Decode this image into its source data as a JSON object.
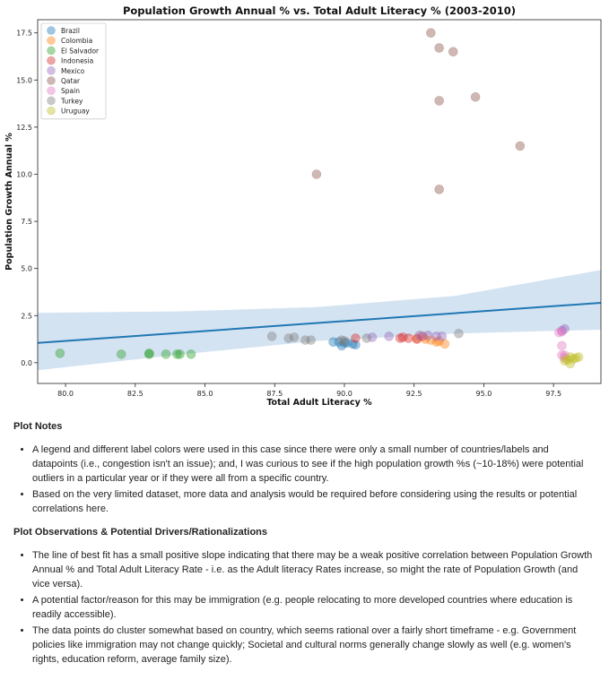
{
  "chart_data": {
    "type": "scatter",
    "title": "Population Growth Annual % vs. Total Adult Literacy % (2003-2010)",
    "xlabel": "Total Adult Literacy %",
    "ylabel": "Population Growth Annual %",
    "xlim": [
      79,
      99.2
    ],
    "ylim": [
      -1.1,
      18.2
    ],
    "xticks": [
      80.0,
      82.5,
      85.0,
      87.5,
      90.0,
      92.5,
      95.0,
      97.5
    ],
    "xtick_labels": [
      "80.0",
      "82.5",
      "85.0",
      "87.5",
      "90.0",
      "92.5",
      "95.0",
      "97.5"
    ],
    "yticks": [
      0.0,
      2.5,
      5.0,
      7.5,
      10.0,
      12.5,
      15.0,
      17.5
    ],
    "ytick_labels": [
      "0.0",
      "2.5",
      "5.0",
      "7.5",
      "10.0",
      "12.5",
      "15.0",
      "17.5"
    ],
    "legend_position": "top-left",
    "series": [
      {
        "name": "Brazil",
        "color": "#1f77b4",
        "points": [
          [
            89.8,
            1.1
          ],
          [
            90.0,
            1.05
          ],
          [
            90.3,
            1.0
          ],
          [
            89.6,
            1.1
          ],
          [
            90.4,
            0.95
          ],
          [
            89.9,
            0.9
          ],
          [
            90.1,
            1.05
          ]
        ]
      },
      {
        "name": "Colombia",
        "color": "#ff7f0e",
        "points": [
          [
            93.6,
            1.0
          ],
          [
            93.3,
            1.1
          ],
          [
            92.9,
            1.25
          ],
          [
            93.1,
            1.2
          ],
          [
            93.4,
            1.15
          ],
          [
            92.6,
            1.3
          ]
        ]
      },
      {
        "name": "El Salvador",
        "color": "#2ca02c",
        "points": [
          [
            79.8,
            0.5
          ],
          [
            82.0,
            0.45
          ],
          [
            83.0,
            0.45
          ],
          [
            83.0,
            0.5
          ],
          [
            83.6,
            0.45
          ],
          [
            84.0,
            0.45
          ],
          [
            84.1,
            0.45
          ],
          [
            84.5,
            0.45
          ]
        ]
      },
      {
        "name": "Indonesia",
        "color": "#d62728",
        "points": [
          [
            90.4,
            1.3
          ],
          [
            92.0,
            1.3
          ],
          [
            92.1,
            1.35
          ],
          [
            92.3,
            1.3
          ],
          [
            92.6,
            1.25
          ],
          [
            92.8,
            1.4
          ]
        ]
      },
      {
        "name": "Mexico",
        "color": "#9467bd",
        "points": [
          [
            91.0,
            1.35
          ],
          [
            91.6,
            1.4
          ],
          [
            92.7,
            1.45
          ],
          [
            93.0,
            1.45
          ],
          [
            93.3,
            1.4
          ],
          [
            93.5,
            1.4
          ],
          [
            97.8,
            1.7
          ],
          [
            97.9,
            1.8
          ]
        ]
      },
      {
        "name": "Qatar",
        "color": "#8c564b",
        "points": [
          [
            89.0,
            10.0
          ],
          [
            93.1,
            17.5
          ],
          [
            93.4,
            16.7
          ],
          [
            93.9,
            16.5
          ],
          [
            94.7,
            14.1
          ],
          [
            93.4,
            13.9
          ],
          [
            96.3,
            11.5
          ],
          [
            93.4,
            9.2
          ]
        ]
      },
      {
        "name": "Spain",
        "color": "#e377c2",
        "points": [
          [
            97.7,
            1.6
          ],
          [
            97.8,
            1.65
          ],
          [
            97.8,
            0.9
          ],
          [
            97.8,
            0.4
          ],
          [
            97.9,
            0.25
          ],
          [
            97.9,
            0.4
          ]
        ]
      },
      {
        "name": "Turkey",
        "color": "#7f7f7f",
        "points": [
          [
            87.4,
            1.4
          ],
          [
            88.0,
            1.3
          ],
          [
            88.2,
            1.35
          ],
          [
            88.6,
            1.2
          ],
          [
            88.8,
            1.2
          ],
          [
            89.9,
            1.2
          ],
          [
            90.0,
            1.15
          ],
          [
            90.8,
            1.3
          ],
          [
            94.1,
            1.55
          ]
        ]
      },
      {
        "name": "Uruguay",
        "color": "#bcbd22",
        "points": [
          [
            97.9,
            0.1
          ],
          [
            98.1,
            0.3
          ],
          [
            98.2,
            0.2
          ],
          [
            98.1,
            -0.05
          ],
          [
            98.3,
            0.25
          ],
          [
            98.4,
            0.3
          ],
          [
            98.0,
            0.15
          ]
        ]
      }
    ],
    "fit_line": {
      "x": [
        79,
        99.2
      ],
      "y": [
        1.05,
        3.18
      ],
      "color": "#1f77b4"
    },
    "confidence_band": {
      "x": [
        79,
        84,
        89,
        94,
        99.2
      ],
      "upper": [
        2.65,
        2.72,
        2.95,
        3.55,
        4.92
      ],
      "lower": [
        -0.4,
        0.42,
        1.15,
        1.55,
        1.75
      ],
      "color": "#c6d9ec"
    }
  },
  "notes": {
    "heading1": "Plot Notes",
    "items1": [
      "A legend and different label colors were used in this case since there were only a small number of countries/labels and datapoints (i.e., congestion isn't an issue); and, I was curious to see if the high population growth %s (~10-18%) were potential outliers in a particular year or if they were all from a specific country.",
      "Based on the very limited dataset, more data and analysis would be required before considering using the results or potential correlations here."
    ],
    "heading2": "Plot Observations & Potential Drivers/Rationalizations",
    "items2": [
      "The line of best fit has a small positive slope indicating that there may be a weak positive correlation between Population Growth Annual % and Total Adult Literacy Rate - i.e. as the Adult literacy Rates increase, so might the rate of Population Growth (and vice versa).",
      "A potential factor/reason for this may be immigration (e.g. people relocating to more developed countries where education is readily accessible).",
      "The data points do cluster somewhat based on country, which seems rational over a fairly short timeframe - e.g. Government policies like immigration may not change quickly; Societal and cultural norms generally change slowly as well (e.g. women's rights, education reform, average family size)."
    ]
  }
}
